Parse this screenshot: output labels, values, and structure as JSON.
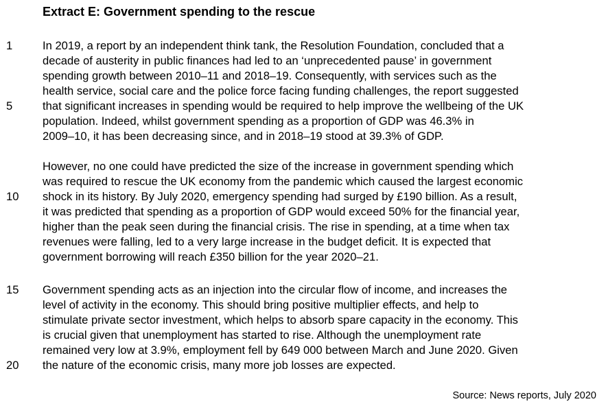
{
  "extract": {
    "title": "Extract E: Government spending to the rescue",
    "line_numbers": [
      "1",
      "5",
      "10",
      "15",
      "20"
    ],
    "lines": [
      "In 2019, a report by an independent think tank, the Resolution Foundation, concluded that a",
      "decade of austerity in public finances had led to an ‘unprecedented pause’ in government",
      "spending growth between 2010–11 and 2018–19. Consequently, with services such as the",
      "health service, social care and the police force facing funding challenges, the report suggested",
      "that significant increases in spending would be required to help improve the wellbeing of the UK",
      "population. Indeed, whilst government spending as a proportion of GDP was 46.3% in",
      "2009–10, it has been decreasing since, and in 2018–19 stood at 39.3% of GDP.",
      "However, no one could have predicted the size of the increase in government spending which",
      "was required to rescue the UK economy from the pandemic which caused the largest economic",
      "shock in its history. By July 2020, emergency spending had surged by £190 billion. As a result,",
      "it was predicted that spending as a proportion of GDP would exceed 50% for the financial year,",
      "higher than the peak seen during the financial crisis. The rise in spending, at a time when tax",
      "revenues were falling, led to a very large increase in the budget deficit. It is expected that",
      "government borrowing will reach £350 billion for the year 2020–21.",
      "Government spending acts as an injection into the circular flow of income, and increases the",
      "level of activity in the economy. This should bring positive multiplier effects, and help to",
      "stimulate private sector investment, which helps to absorb spare capacity in the economy. This",
      "is crucial given that unemployment has started to rise. Although the unemployment rate",
      "remained very low at 3.9%, employment fell by 649 000 between March and June 2020. Given",
      "the nature of the economic crisis, many more job losses are expected."
    ],
    "source": "Source: News reports, July 2020"
  }
}
